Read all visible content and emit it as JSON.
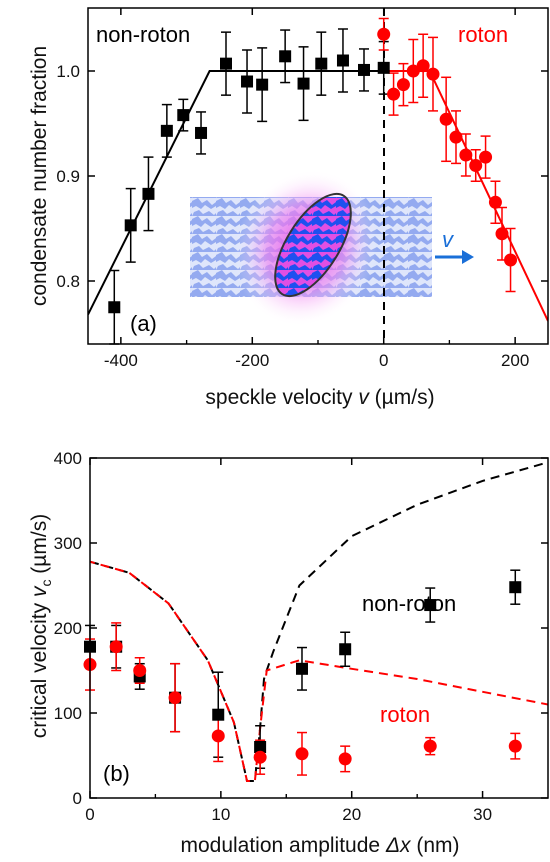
{
  "chart_data": [
    {
      "panel_label": "(a)",
      "type": "scatter",
      "xlabel_prefix": "speckle velocity ",
      "xlabel_var": "v",
      "xlabel_unit": " (µm/s)",
      "ylabel": "condensate number fraction",
      "xlim": [
        -450,
        250
      ],
      "ylim": [
        0.74,
        1.06
      ],
      "xticks": [
        -400,
        -200,
        0,
        200
      ],
      "yticks": [
        0.8,
        0.9,
        1.0
      ],
      "ytick_labels": [
        "0.8",
        "0.9",
        "1.0"
      ],
      "annotations": {
        "left": "non-roton",
        "right": "roton",
        "arrow": "v"
      },
      "colors": {
        "non_roton": "#000000",
        "roton": "#ff0000",
        "arrow": "#1a6fd8"
      },
      "series": [
        {
          "name": "non-roton",
          "marker": "square",
          "x": [
            -410,
            -385,
            -358,
            -330,
            -305,
            -278,
            -240,
            -208,
            -185,
            -150,
            -122,
            -95,
            -62,
            -30,
            0
          ],
          "y": [
            0.775,
            0.853,
            0.883,
            0.943,
            0.958,
            0.941,
            1.007,
            0.99,
            0.987,
            1.014,
            0.988,
            1.007,
            1.01,
            1.001,
            1.003
          ],
          "yerr": [
            0.035,
            0.035,
            0.035,
            0.025,
            0.015,
            0.02,
            0.03,
            0.03,
            0.035,
            0.025,
            0.035,
            0.03,
            0.03,
            0.02,
            0.025
          ]
        },
        {
          "name": "roton",
          "marker": "circle",
          "x": [
            0,
            15,
            30,
            45,
            60,
            75,
            95,
            110,
            125,
            140,
            155,
            170,
            180,
            193
          ],
          "y": [
            1.035,
            0.978,
            0.987,
            1.0,
            1.005,
            0.997,
            0.954,
            0.937,
            0.92,
            0.91,
            0.918,
            0.875,
            0.845,
            0.82
          ],
          "yerr": [
            0.015,
            0.02,
            0.02,
            0.03,
            0.03,
            0.035,
            0.04,
            0.025,
            0.02,
            0.015,
            0.02,
            0.02,
            0.025,
            0.03
          ]
        }
      ],
      "fit_lines": [
        {
          "name": "non-roton",
          "x": [
            -450,
            -265,
            0
          ],
          "y": [
            0.768,
            1.0,
            1.0
          ]
        },
        {
          "name": "roton",
          "x": [
            0,
            70,
            250
          ],
          "y": [
            1.0,
            1.0,
            0.762
          ]
        }
      ]
    },
    {
      "panel_label": "(b)",
      "type": "scatter",
      "xlabel_prefix": "modulation amplitude ",
      "xlabel_var": "Δx",
      "xlabel_unit": " (nm)",
      "ylabel_prefix": "critical velocity ",
      "ylabel_var": "v",
      "ylabel_sub": "c",
      "ylabel_unit": " (µm/s)",
      "xlim": [
        0,
        35
      ],
      "ylim": [
        0,
        400
      ],
      "xticks": [
        0,
        10,
        20,
        30
      ],
      "yticks": [
        0,
        100,
        200,
        300,
        400
      ],
      "annotations": {
        "upper": "non-roton",
        "lower": "roton"
      },
      "series": [
        {
          "name": "non-roton",
          "marker": "square",
          "x": [
            0,
            2,
            3.8,
            6.5,
            9.8,
            13,
            16.2,
            19.5,
            26,
            32.5
          ],
          "y": [
            178,
            178,
            143,
            118,
            98,
            60,
            152,
            175,
            227,
            248
          ],
          "yerr": [
            25,
            25,
            15,
            40,
            50,
            25,
            25,
            20,
            20,
            20
          ]
        },
        {
          "name": "roton",
          "marker": "circle",
          "x": [
            0,
            2,
            3.8,
            6.5,
            9.8,
            13,
            16.2,
            19.5,
            26,
            32.5
          ],
          "y": [
            157,
            178,
            150,
            118,
            73,
            48,
            52,
            46,
            61,
            61
          ],
          "yerr": [
            30,
            28,
            15,
            40,
            30,
            20,
            25,
            15,
            10,
            15
          ]
        }
      ],
      "curves": [
        {
          "name": "non-roton theory (black)",
          "x": [
            0,
            3,
            6,
            9,
            11,
            12,
            12.6,
            13,
            13.3,
            13.5,
            14,
            16,
            20,
            25,
            30,
            35
          ],
          "y": [
            278,
            265,
            229,
            162,
            89,
            20,
            20,
            82,
            140,
            150,
            172,
            250,
            308,
            345,
            373,
            395
          ]
        },
        {
          "name": "roton theory (red)",
          "x": [
            0,
            3,
            6,
            9,
            11,
            12,
            12.6,
            13,
            13.5,
            16,
            20,
            25,
            30,
            35
          ],
          "y": [
            278,
            265,
            229,
            162,
            89,
            20,
            20,
            82,
            150,
            162,
            152,
            140,
            125,
            110
          ]
        }
      ]
    }
  ]
}
